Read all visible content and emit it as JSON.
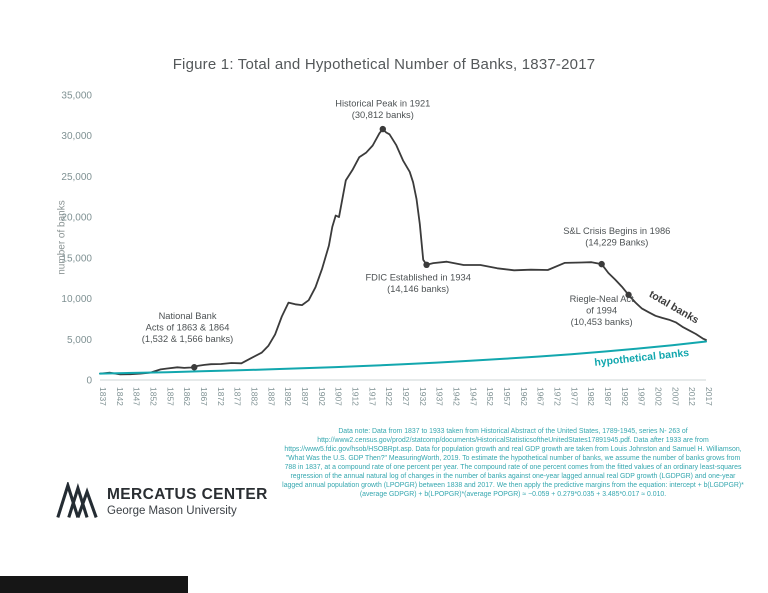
{
  "title": "Figure 1: Total and Hypothetical Number of Banks, 1837-2017",
  "y_axis_label": "number of banks",
  "data_note": "Data note: Data from 1837 to 1933 taken from Historical Abstract of the United States, 1789-1945, series N- 263 of http://www2.census.gov/prod2/statcomp/documents/HistoricalStatisticsoftheUnitedStates17891945.pdf. Data after 1933 are from https://www5.fdic.gov/hsob/HSOBRpt.asp. Data for population growth and real GDP growth are taken from Louis Johnston and Samuel H. Williamson, \"What Was the U.S. GDP Then?\" MeasuringWorth, 2019. To estimate the hypothetical number of banks, we assume the number of banks grows from 788 in 1837, at a compound rate of one percent per year. The compound rate of one percent comes from the fitted values of an ordinary least-squares regression of the annual natural log of changes in the number of banks against one-year lagged annual real GDP growth (LGDPGR) and one-year lagged annual population growth (LPOPGR) between 1838 and 2017. We then apply the predictive margins from the equation: intercept + b(LGDPGR)*(average GDPGR) + b(LPOPGR)*(average POPGR) ≈ −0.059 + 0.279*0.035 + 3.485*0.017 ≈ 0.010.",
  "logo": {
    "name": "MERCATUS CENTER",
    "sub": "George Mason University"
  },
  "colors": {
    "background": "#ffffff",
    "total": "#3b3b3b",
    "hypothetical": "#12a7ae",
    "note": "#35a7af",
    "ticks": "#7f9193",
    "annotation": "#4d5254",
    "title": "#54585a",
    "axis": "#ccd4d4"
  },
  "chart_data": {
    "type": "line",
    "title": "Figure 1: Total and Hypothetical Number of Banks, 1837-2017",
    "xlabel": "",
    "ylabel": "number of banks",
    "xlim": [
      1837,
      2017
    ],
    "ylim": [
      0,
      35000
    ],
    "grid": false,
    "legend_position": "inline-rotated-labels",
    "x_ticks": [
      1837,
      1842,
      1847,
      1852,
      1857,
      1862,
      1867,
      1872,
      1877,
      1882,
      1887,
      1892,
      1897,
      1902,
      1907,
      1912,
      1917,
      1922,
      1927,
      1932,
      1937,
      1942,
      1947,
      1952,
      1957,
      1962,
      1967,
      1972,
      1977,
      1982,
      1987,
      1992,
      1997,
      2002,
      2007,
      2012,
      2017
    ],
    "y_ticks": [
      0,
      5000,
      10000,
      15000,
      20000,
      25000,
      30000,
      35000
    ],
    "series": [
      {
        "name": "total banks",
        "color": "#3b3b3b",
        "width": 1.8,
        "x": [
          1837,
          1840,
          1843,
          1846,
          1849,
          1852,
          1855,
          1857,
          1860,
          1862,
          1864,
          1865,
          1866,
          1868,
          1870,
          1873,
          1876,
          1879,
          1882,
          1885,
          1887,
          1889,
          1891,
          1893,
          1895,
          1897,
          1899,
          1901,
          1903,
          1905,
          1906,
          1907,
          1908,
          1910,
          1912,
          1914,
          1916,
          1918,
          1920,
          1921,
          1922,
          1923,
          1925,
          1927,
          1929,
          1930,
          1931,
          1932,
          1933,
          1934,
          1936,
          1940,
          1945,
          1950,
          1955,
          1960,
          1965,
          1970,
          1975,
          1980,
          1983,
          1986,
          1988,
          1990,
          1992,
          1994,
          1996,
          1998,
          2000,
          2002,
          2004,
          2006,
          2008,
          2010,
          2012,
          2014,
          2016,
          2017
        ],
        "values": [
          788,
          901,
          691,
          707,
          782,
          913,
          1307,
          1416,
          1562,
          1492,
          1532,
          1566,
          1731,
          1860,
          1937,
          1968,
          2091,
          2052,
          2715,
          3355,
          4190,
          5600,
          7800,
          9500,
          9300,
          9200,
          9800,
          11400,
          13700,
          16500,
          18800,
          20200,
          20000,
          24514,
          25800,
          27349,
          27900,
          28800,
          30291,
          30812,
          30389,
          30178,
          28841,
          26973,
          25568,
          24273,
          22242,
          19163,
          14771,
          14146,
          14350,
          14534,
          14126,
          14121,
          13716,
          13472,
          13544,
          13511,
          14384,
          14434,
          14469,
          14229,
          13137,
          12347,
          11466,
          10453,
          9530,
          8774,
          8315,
          7888,
          7631,
          7402,
          7087,
          6529,
          6096,
          5643,
          5113,
          4918
        ]
      },
      {
        "name": "hypothetical banks",
        "color": "#12a7ae",
        "width": 2,
        "x": [
          1837,
          1847,
          1857,
          1867,
          1877,
          1887,
          1897,
          1907,
          1917,
          1927,
          1937,
          1947,
          1957,
          1967,
          1977,
          1987,
          1997,
          2007,
          2017
        ],
        "values": [
          788,
          871,
          962,
          1063,
          1174,
          1297,
          1432,
          1582,
          1747,
          1930,
          2131,
          2354,
          2600,
          2873,
          3173,
          3505,
          3872,
          4277,
          4725
        ]
      }
    ],
    "markers": [
      {
        "year": 1865,
        "value": 1566
      },
      {
        "year": 1921,
        "value": 30812
      },
      {
        "year": 1934,
        "value": 14146
      },
      {
        "year": 1986,
        "value": 14229
      },
      {
        "year": 1994,
        "value": 10453
      }
    ],
    "annotations": [
      {
        "year": 1921,
        "value": 33600,
        "lines": [
          "Historical Peak in 1921",
          "(30,812 banks)"
        ]
      },
      {
        "year": 1863,
        "value": 7500,
        "lines": [
          "National Bank",
          "Acts of 1863 & 1864",
          "(1,532 & 1,566 banks)"
        ]
      },
      {
        "year": 1931.5,
        "value": 12200,
        "lines": [
          "FDIC Established in 1934",
          "(14,146 banks)"
        ]
      },
      {
        "year": 1990.5,
        "value": 17900,
        "lines": [
          "S&L Crisis Begins in 1986",
          "(14,229 Banks)"
        ]
      },
      {
        "year": 1986,
        "value": 9600,
        "lines": [
          "Riegle-Neal Act",
          "of 1994",
          "(10,453 banks)"
        ]
      }
    ],
    "series_labels": [
      {
        "text": "total banks",
        "year": 2007,
        "value": 8600,
        "angle": 30,
        "color": "#3b3b3b"
      },
      {
        "text": "hypothetical banks",
        "year": 1998,
        "value": 2350,
        "angle": -6,
        "color": "#12a7ae"
      }
    ]
  }
}
